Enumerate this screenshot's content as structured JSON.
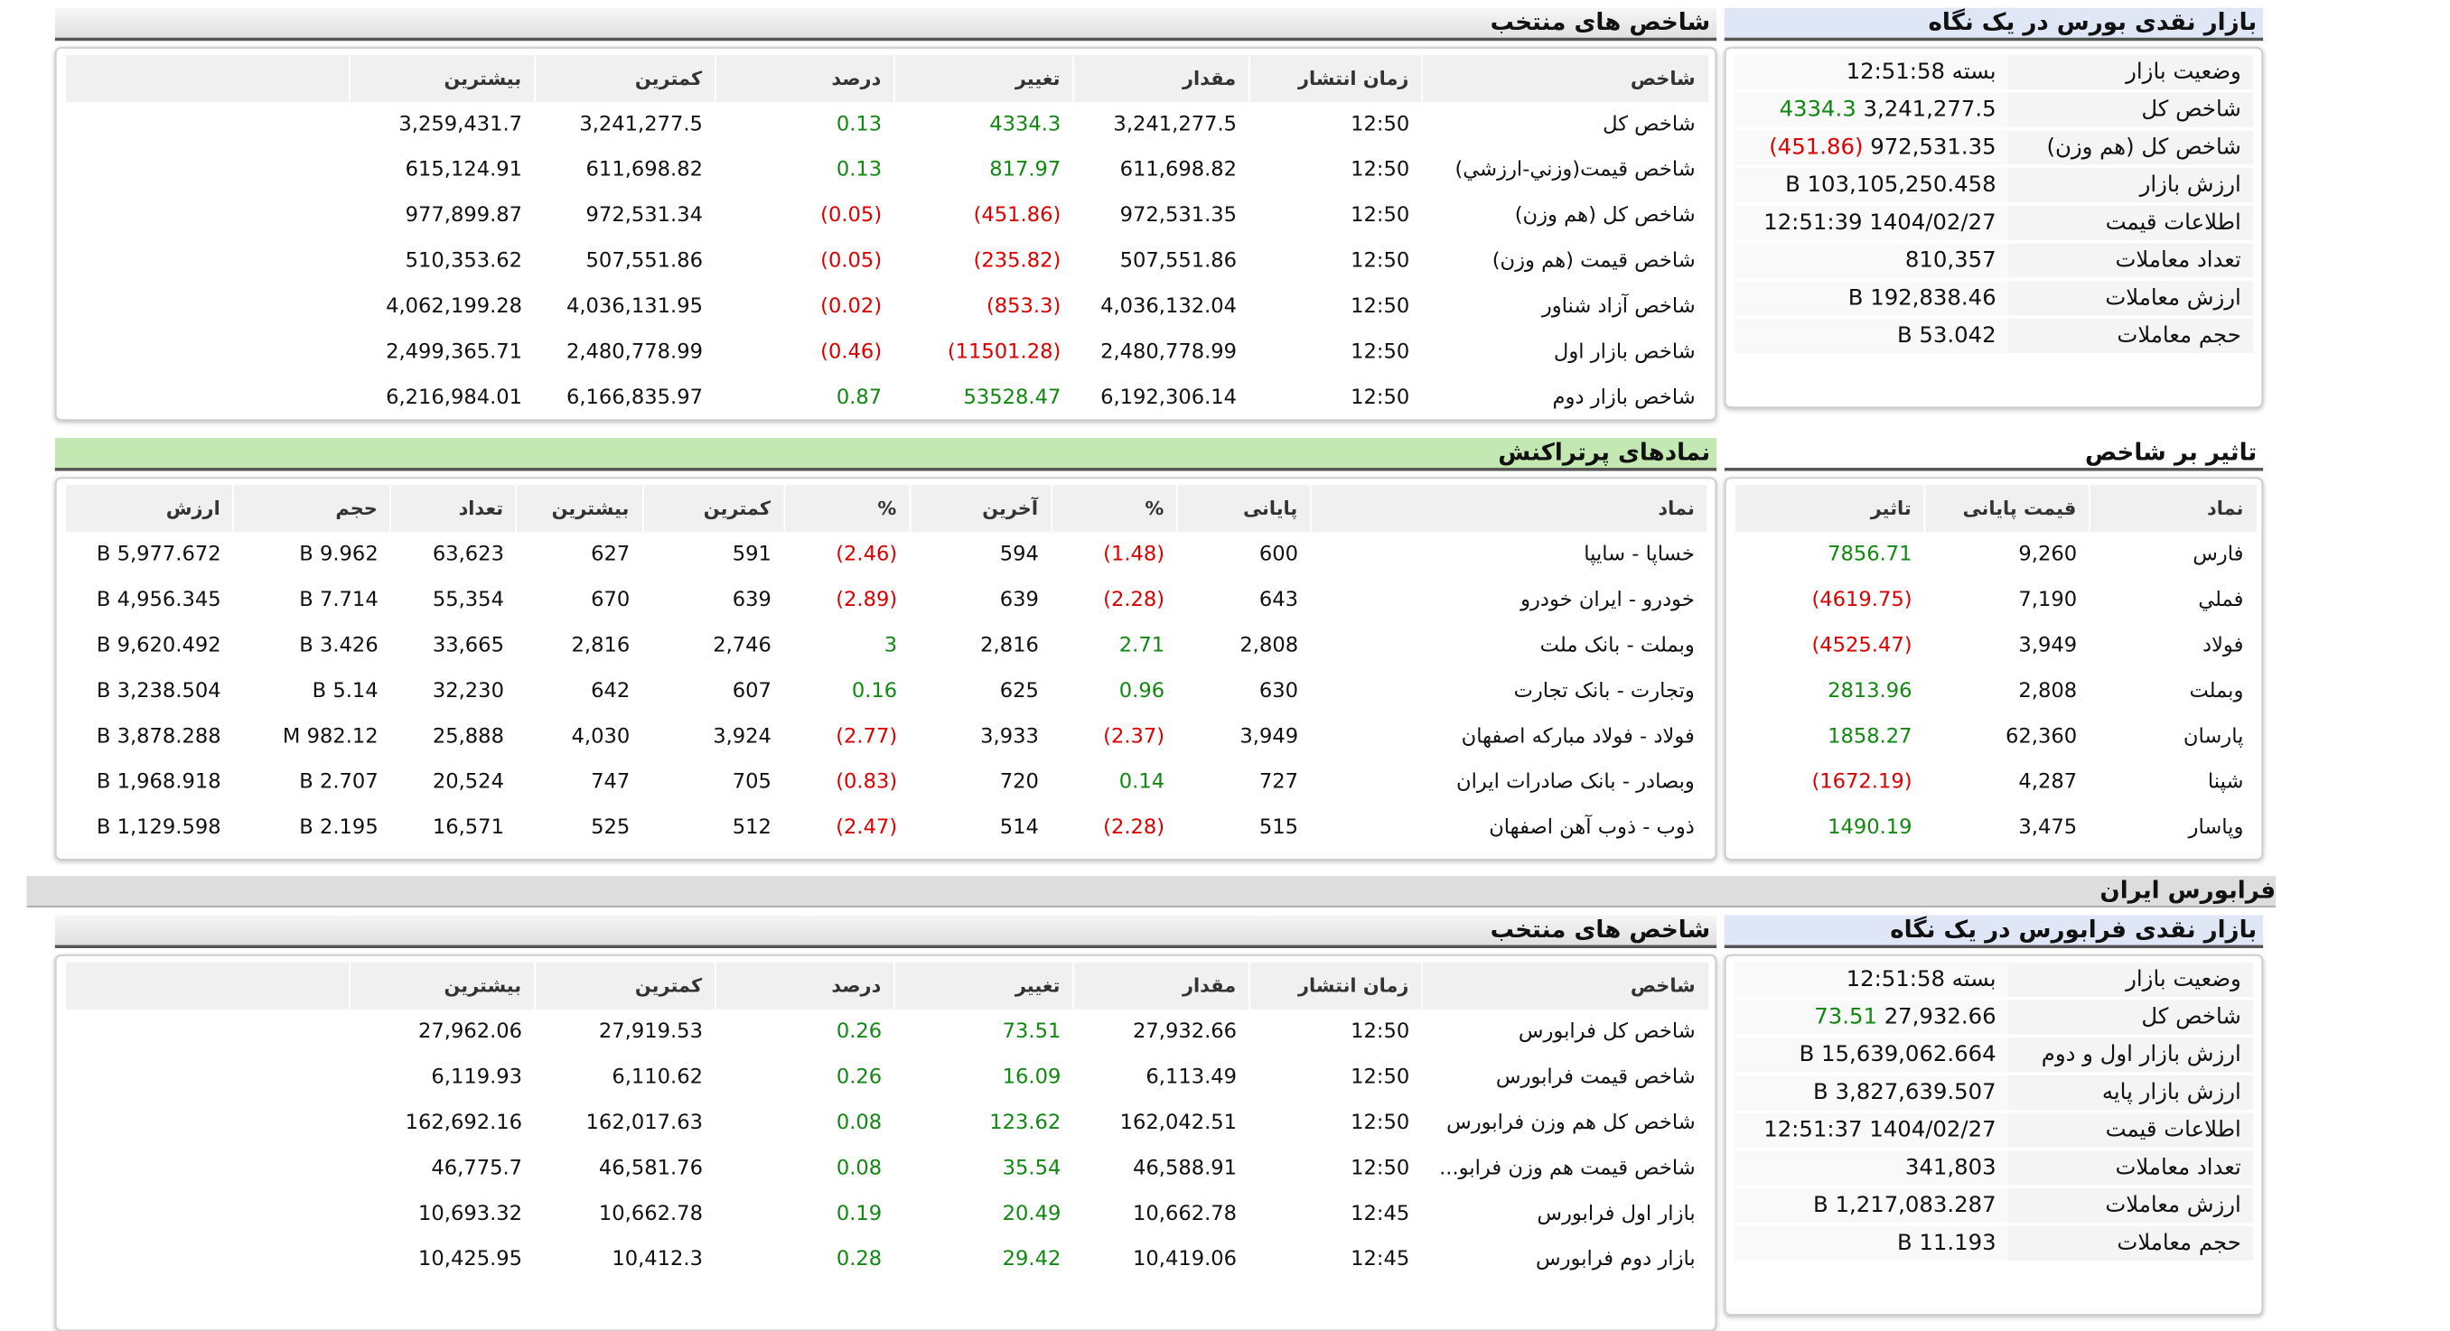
{
  "market_overview": {
    "title": "بازار نقدی بورس در یک نگاه",
    "rows": [
      [
        "وضعیت بازار",
        "بسته 12:51:58"
      ],
      [
        "شاخص کل",
        "3,241,277.5",
        "4334.3"
      ],
      [
        "شاخص کل (هم وزن)",
        "972,531.35",
        "(451.86)"
      ],
      [
        "ارزش بازار",
        "103,105,250.458 B"
      ],
      [
        "اطلاعات قیمت",
        "1404/02/27 12:51:39"
      ],
      [
        "تعداد معاملات",
        "810,357"
      ],
      [
        "ارزش معاملات",
        "192,838.46 B"
      ],
      [
        "حجم معاملات",
        "53.042 B"
      ]
    ]
  },
  "selected_indices": {
    "title": "شاخص های منتخب",
    "headers": [
      "شاخص",
      "زمان انتشار",
      "مقدار",
      "تغییر",
      "درصد",
      "کمترین",
      "بیشترین"
    ],
    "rows": [
      [
        "شاخص کل",
        "12:50",
        "3,241,277.5",
        "4334.3",
        "0.13",
        "3,241,277.5",
        "3,259,431.7"
      ],
      [
        "شاخص قيمت(وزني-ارزشي)",
        "12:50",
        "611,698.82",
        "817.97",
        "0.13",
        "611,698.82",
        "615,124.91"
      ],
      [
        "شاخص کل (هم وزن)",
        "12:50",
        "972,531.35",
        "(451.86)",
        "(0.05)",
        "972,531.34",
        "977,899.87"
      ],
      [
        "شاخص قیمت (هم وزن)",
        "12:50",
        "507,551.86",
        "(235.82)",
        "(0.05)",
        "507,551.86",
        "510,353.62"
      ],
      [
        "شاخص آزاد شناور",
        "12:50",
        "4,036,132.04",
        "(853.3)",
        "(0.02)",
        "4,036,131.95",
        "4,062,199.28"
      ],
      [
        "شاخص بازار اول",
        "12:50",
        "2,480,778.99",
        "(11501.28)",
        "(0.46)",
        "2,480,778.99",
        "2,499,365.71"
      ],
      [
        "شاخص بازار دوم",
        "12:50",
        "6,192,306.14",
        "53528.47",
        "0.87",
        "6,166,835.97",
        "6,216,984.01"
      ]
    ]
  },
  "index_influence": {
    "title": "تاثیر بر شاخص",
    "headers": [
      "نماد",
      "قیمت پایانی",
      "تاثیر"
    ],
    "rows": [
      [
        "فارس",
        "9,260",
        "7856.71"
      ],
      [
        "فملي",
        "7,190",
        "(4619.75)"
      ],
      [
        "فولاد",
        "3,949",
        "(4525.47)"
      ],
      [
        "وبملت",
        "2,808",
        "2813.96"
      ],
      [
        "پارسان",
        "62,360",
        "1858.27"
      ],
      [
        "شپنا",
        "4,287",
        "(1672.19)"
      ],
      [
        "وپاسار",
        "3,475",
        "1490.19"
      ]
    ]
  },
  "active_symbols": {
    "title": "نمادهای پرتراکنش",
    "headers": [
      "نماد",
      "پایانی",
      "%",
      "آخرین",
      "%",
      "کمترین",
      "بیشترین",
      "تعداد",
      "حجم",
      "ارزش"
    ],
    "rows": [
      [
        "خساپا - سایپا",
        "600",
        "(1.48)",
        "594",
        "(2.46)",
        "591",
        "627",
        "63,623",
        "9.962 B",
        "5,977.672 B"
      ],
      [
        "خودرو - ایران خودرو",
        "643",
        "(2.28)",
        "639",
        "(2.89)",
        "639",
        "670",
        "55,354",
        "7.714 B",
        "4,956.345 B"
      ],
      [
        "وبملت - بانک ملت",
        "2,808",
        "2.71",
        "2,816",
        "3",
        "2,746",
        "2,816",
        "33,665",
        "3.426 B",
        "9,620.492 B"
      ],
      [
        "وتجارت - بانک تجارت",
        "630",
        "0.96",
        "625",
        "0.16",
        "607",
        "642",
        "32,230",
        "5.14 B",
        "3,238.504 B"
      ],
      [
        "فولاد - فولاد مبارکه اصفهان",
        "3,949",
        "(2.37)",
        "3,933",
        "(2.77)",
        "3,924",
        "4,030",
        "25,888",
        "982.12 M",
        "3,878.288 B"
      ],
      [
        "وبصادر - بانک صادرات ایران",
        "727",
        "0.14",
        "720",
        "(0.83)",
        "705",
        "747",
        "20,524",
        "2.707 B",
        "1,968.918 B"
      ],
      [
        "ذوب - ذوب آهن اصفهان",
        "515",
        "(2.28)",
        "514",
        "(2.47)",
        "512",
        "525",
        "16,571",
        "2.195 B",
        "1,129.598 B"
      ]
    ]
  },
  "farabourse": {
    "section_title": "فرابورس ایران",
    "overview": {
      "title": "بازار نقدی فرابورس در یک نگاه",
      "rows": [
        [
          "وضعیت بازار",
          "بسته 12:51:58"
        ],
        [
          "شاخص کل",
          "27,932.66",
          "73.51"
        ],
        [
          "ارزش بازار اول و دوم",
          "15,639,062.664 B"
        ],
        [
          "ارزش بازار پایه",
          "3,827,639.507 B"
        ],
        [
          "اطلاعات قیمت",
          "1404/02/27 12:51:37"
        ],
        [
          "تعداد معاملات",
          "341,803"
        ],
        [
          "ارزش معاملات",
          "1,217,083.287 B"
        ],
        [
          "حجم معاملات",
          "11.193 B"
        ]
      ]
    },
    "indices": {
      "title": "شاخص های منتخب",
      "headers": [
        "شاخص",
        "زمان انتشار",
        "مقدار",
        "تغییر",
        "درصد",
        "کمترین",
        "بیشترین"
      ],
      "rows": [
        [
          "شاخص کل فرابورس",
          "12:50",
          "27,932.66",
          "73.51",
          "0.26",
          "27,919.53",
          "27,962.06"
        ],
        [
          "شاخص قیمت فرابورس",
          "12:50",
          "6,113.49",
          "16.09",
          "0.26",
          "6,110.62",
          "6,119.93"
        ],
        [
          "شاخص کل هم وزن فرابورس",
          "12:50",
          "162,042.51",
          "123.62",
          "0.08",
          "162,017.63",
          "162,692.16"
        ],
        [
          "شاخص قیمت هم وزن فرابو...",
          "12:50",
          "46,588.91",
          "35.54",
          "0.08",
          "46,581.76",
          "46,775.7"
        ],
        [
          "بازار اول فرابورس",
          "12:45",
          "10,662.78",
          "20.49",
          "0.19",
          "10,662.78",
          "10,693.32"
        ],
        [
          "بازار دوم فرابورس",
          "12:45",
          "10,419.06",
          "29.42",
          "0.28",
          "10,412.3",
          "10,425.95"
        ]
      ]
    }
  }
}
